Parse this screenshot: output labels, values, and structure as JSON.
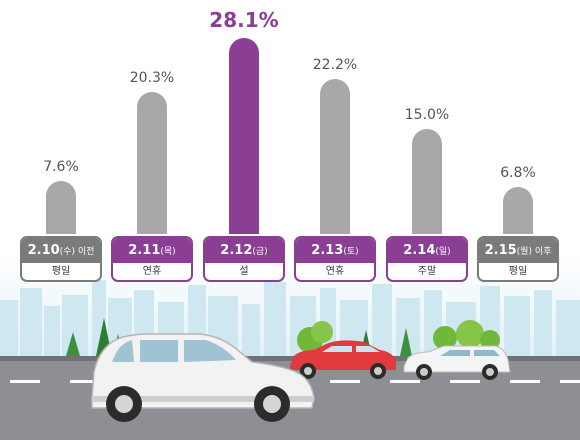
{
  "chart_data": {
    "type": "bar",
    "categories": [
      "2.10(수) 이전",
      "2.11(목)",
      "2.12(금)",
      "2.13(토)",
      "2.14(일)",
      "2.15(월) 이후"
    ],
    "category_parts": [
      {
        "date": "2.10",
        "paren": "(수)",
        "suffix": " 이전",
        "day_type": "평일"
      },
      {
        "date": "2.11",
        "paren": "(목)",
        "suffix": "",
        "day_type": "연휴"
      },
      {
        "date": "2.12",
        "paren": "(금)",
        "suffix": "",
        "day_type": "설"
      },
      {
        "date": "2.13",
        "paren": "(토)",
        "suffix": "",
        "day_type": "연휴"
      },
      {
        "date": "2.14",
        "paren": "(일)",
        "suffix": "",
        "day_type": "주말"
      },
      {
        "date": "2.15",
        "paren": "(월)",
        "suffix": " 이후",
        "day_type": "평일"
      }
    ],
    "values": [
      7.6,
      20.3,
      28.1,
      22.2,
      15.0,
      6.8
    ],
    "value_labels": [
      "7.6%",
      "20.3%",
      "28.1%",
      "22.2%",
      "15.0%",
      "6.8%"
    ],
    "highlight_index": 2,
    "ylim": [
      0,
      28.1
    ],
    "colors": {
      "bar": "#a8a8a8",
      "bar_highlight": "#8a3f95",
      "card_gray": "#7b7b7b",
      "card_purple": "#8a3f95"
    }
  }
}
